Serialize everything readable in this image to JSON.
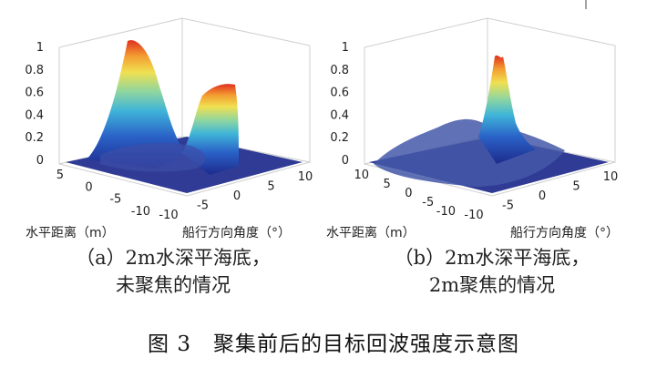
{
  "chart_data": [
    {
      "type": "surface3d",
      "panel_label": "(a)",
      "caption_line1": "（a）2m水深平海底，",
      "caption_line2": "未聚焦的情况",
      "xlabel": "船行方向角度（°）",
      "ylabel": "水平距离（m）",
      "x_ticks": [
        "-10",
        "-5",
        "0",
        "5",
        "10"
      ],
      "y_ticks": [
        "-10",
        "-5",
        "0",
        "5"
      ],
      "z_ticks": [
        "0",
        "0.2",
        "0.4",
        "0.6",
        "0.8",
        "1"
      ],
      "zlim": [
        0,
        1
      ],
      "peaks": [
        {
          "x": -8,
          "y": 2,
          "z": 0.98
        },
        {
          "x": 6,
          "y": 2,
          "z": 0.75
        }
      ],
      "colormap": [
        "#1e2a8c",
        "#2a62c8",
        "#3fb4d8",
        "#8fd6a0",
        "#f0e050",
        "#f39a30",
        "#e03020"
      ]
    },
    {
      "type": "surface3d",
      "panel_label": "(b)",
      "caption_line1": "（b）2m水深平海底，",
      "caption_line2": "2m聚焦的情况",
      "xlabel": "船行方向角度（°）",
      "ylabel": "水平距离（m）",
      "x_ticks": [
        "-10",
        "-5",
        "0",
        "5",
        "10"
      ],
      "y_ticks": [
        "-10",
        "-5",
        "0",
        "5",
        "10"
      ],
      "z_ticks": [
        "0",
        "0.2",
        "0.4",
        "0.6",
        "0.8",
        "1"
      ],
      "zlim": [
        0,
        1
      ],
      "peaks": [
        {
          "x": 0,
          "y": 2,
          "z": 0.95
        }
      ],
      "colormap": [
        "#1e2a8c",
        "#2a62c8",
        "#3fb4d8",
        "#8fd6a0",
        "#f0e050",
        "#f39a30",
        "#e03020"
      ]
    }
  ],
  "figure_title": "图 3　聚集前后的目标回波强度示意图"
}
